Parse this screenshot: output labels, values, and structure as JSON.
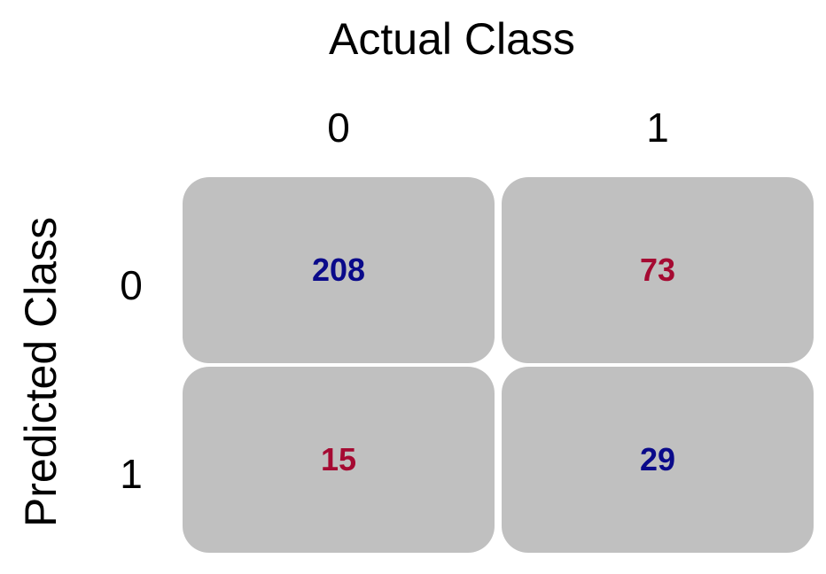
{
  "chart_data": {
    "type": "heatmap",
    "xlabel": "Actual Class",
    "ylabel": "Predicted Class",
    "col_labels": [
      "0",
      "1"
    ],
    "row_labels": [
      "0",
      "1"
    ],
    "cells": [
      {
        "predicted": "0",
        "actual": "0",
        "value": "208",
        "color": "#0a0a8a"
      },
      {
        "predicted": "0",
        "actual": "1",
        "value": "73",
        "color": "#a50a32"
      },
      {
        "predicted": "1",
        "actual": "0",
        "value": "15",
        "color": "#a50a32"
      },
      {
        "predicted": "1",
        "actual": "1",
        "value": "29",
        "color": "#0a0a8a"
      }
    ],
    "cell_color": "#c0c0c0"
  }
}
